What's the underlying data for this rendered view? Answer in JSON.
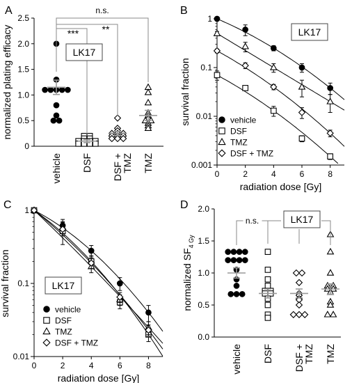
{
  "chart_data": [
    {
      "id": "A",
      "type": "scatter",
      "panel_label": "A",
      "ylabel": "normalized plating efficacy",
      "ylim": [
        0,
        2.5
      ],
      "yticks": [
        "0",
        "0.5",
        "1.0",
        "1.5",
        "2.0",
        "2.5"
      ],
      "box_label": "LK17",
      "significance": [
        {
          "from": "vehicle",
          "to": "TMZ",
          "label": "n.s."
        },
        {
          "from": "vehicle",
          "to": "DSF",
          "label": "***"
        },
        {
          "from": "vehicle",
          "to": "DSF + TMZ",
          "label": "**"
        }
      ],
      "categories": [
        {
          "label": "vehicle",
          "marker": "circle-filled",
          "mean": 1.15,
          "sem": 0.14,
          "values": [
            2.0,
            1.3,
            1.1,
            1.1,
            1.1,
            1.1,
            1.1,
            0.8,
            0.6,
            0.5,
            0.5
          ]
        },
        {
          "label": "DSF",
          "marker": "square-open",
          "mean": 0.1,
          "sem": 0.03,
          "values": [
            0.2,
            0.2,
            0.15,
            0.15,
            0.1,
            0.1,
            0.1,
            0.1,
            0.05,
            0.05,
            0.05,
            0.05
          ]
        },
        {
          "label": "DSF +\nTMZ",
          "marker": "diamond-open",
          "mean": 0.25,
          "sem": 0.04,
          "values": [
            0.55,
            0.35,
            0.3,
            0.25,
            0.25,
            0.25,
            0.2,
            0.2,
            0.2,
            0.15,
            0.15,
            0.15
          ]
        },
        {
          "label": "TMZ",
          "marker": "triangle-open",
          "mean": 0.6,
          "sem": 0.1,
          "values": [
            1.15,
            1.05,
            0.85,
            0.65,
            0.6,
            0.55,
            0.5,
            0.5,
            0.45,
            0.4,
            0.35
          ]
        }
      ]
    },
    {
      "id": "B",
      "type": "line",
      "panel_label": "B",
      "xlabel": "radiation dose [Gy]",
      "ylabel": "survival fraction",
      "xlim": [
        0,
        9
      ],
      "xticks": [
        0,
        2,
        4,
        6,
        8
      ],
      "ylim": [
        0.001,
        1
      ],
      "yscale": "log",
      "yticks": [
        "0.001",
        "0.01",
        "0.1",
        "1"
      ],
      "box_label": "LK17",
      "legend": {
        "position": "bottom-left"
      },
      "series": [
        {
          "name": "vehicle",
          "marker": "circle-filled",
          "x": [
            0,
            2,
            4,
            6,
            8
          ],
          "y": [
            1.0,
            0.6,
            0.25,
            0.1,
            0.038
          ],
          "err": [
            0,
            0.15,
            0.03,
            0.02,
            0.01
          ]
        },
        {
          "name": "DSF",
          "marker": "square-open",
          "x": [
            0,
            2,
            4,
            6,
            8
          ],
          "y": [
            0.07,
            0.038,
            0.013,
            0.0035,
            0.0015
          ],
          "err": [
            0.015,
            0.004,
            0.003,
            0.0005,
            0.0002
          ]
        },
        {
          "name": "TMZ",
          "marker": "triangle-open",
          "x": [
            0,
            2,
            4,
            6,
            8
          ],
          "y": [
            0.5,
            0.27,
            0.1,
            0.04,
            0.02
          ],
          "err": [
            0.05,
            0.06,
            0.02,
            0.015,
            0.008
          ]
        },
        {
          "name": "DSF + TMZ",
          "marker": "diamond-open",
          "x": [
            0,
            2,
            4,
            6,
            8
          ],
          "y": [
            0.22,
            0.11,
            0.04,
            0.012,
            0.0045
          ],
          "err": [
            0.02,
            0.015,
            0.005,
            0.003,
            0.0007
          ]
        }
      ]
    },
    {
      "id": "C",
      "type": "line",
      "panel_label": "C",
      "xlabel": "radiation dose [Gy]",
      "ylabel": "survival fraction",
      "xlim": [
        0,
        9
      ],
      "xticks": [
        0,
        2,
        4,
        6,
        8
      ],
      "ylim": [
        0.01,
        1
      ],
      "yscale": "log",
      "yticks": [
        "0.01",
        "0.1",
        "1"
      ],
      "box_label": "LK17",
      "legend": {
        "position": "bottom-left"
      },
      "series": [
        {
          "name": "vehicle",
          "marker": "circle-filled",
          "x": [
            0,
            2,
            4,
            6,
            8
          ],
          "y": [
            1.0,
            0.62,
            0.28,
            0.1,
            0.04
          ],
          "err": [
            0,
            0.13,
            0.05,
            0.02,
            0.01
          ]
        },
        {
          "name": "DSF",
          "marker": "square-open",
          "x": [
            0,
            2,
            4,
            6,
            8
          ],
          "y": [
            1.0,
            0.52,
            0.2,
            0.055,
            0.02
          ],
          "err": [
            0,
            0.18,
            0.04,
            0.01,
            0.004
          ]
        },
        {
          "name": "TMZ",
          "marker": "triangle-open",
          "x": [
            0,
            2,
            4,
            6,
            8
          ],
          "y": [
            1.0,
            0.58,
            0.17,
            0.06,
            0.025
          ],
          "err": [
            0,
            0.1,
            0.03,
            0.01,
            0.005
          ]
        },
        {
          "name": "DSF + TMZ",
          "marker": "diamond-open",
          "x": [
            0,
            2,
            4,
            6,
            8
          ],
          "y": [
            1.0,
            0.55,
            0.19,
            0.065,
            0.023
          ],
          "err": [
            0,
            0.1,
            0.03,
            0.01,
            0.004
          ]
        }
      ]
    },
    {
      "id": "D",
      "type": "scatter",
      "panel_label": "D",
      "ylabel": "normalized SF",
      "ylabel_sub": "4 Gy",
      "ylim": [
        0,
        2.0
      ],
      "yticks": [
        "0.0",
        "0.5",
        "1.0",
        "1.5",
        "2.0"
      ],
      "box_label": "LK17",
      "significance": [
        {
          "from": "vehicle",
          "to": "TMZ",
          "label": "n.s."
        }
      ],
      "categories": [
        {
          "label": "vehicle",
          "marker": "circle-filled",
          "mean": 1.0,
          "sem": 0.08,
          "values": [
            1.33,
            1.33,
            1.33,
            1.33,
            1.2,
            1.2,
            1.2,
            1.2,
            1.05,
            0.9,
            0.8,
            0.67,
            0.67,
            0.67
          ]
        },
        {
          "label": "DSF",
          "marker": "square-open",
          "mean": 0.68,
          "sem": 0.07,
          "values": [
            1.33,
            1.05,
            0.9,
            0.8,
            0.72,
            0.72,
            0.68,
            0.68,
            0.6,
            0.5,
            0.35,
            0.3
          ]
        },
        {
          "label": "DSF +\nTMZ",
          "marker": "diamond-open",
          "mean": 0.68,
          "sem": 0.07,
          "values": [
            1.0,
            1.0,
            0.85,
            0.68,
            0.65,
            0.6,
            0.58,
            0.5,
            0.35,
            0.35,
            0.35
          ]
        },
        {
          "label": "TMZ",
          "marker": "triangle-open",
          "mean": 0.75,
          "sem": 0.08,
          "values": [
            1.6,
            1.33,
            1.0,
            0.8,
            0.8,
            0.75,
            0.75,
            0.7,
            0.55,
            0.5,
            0.35,
            0.35
          ]
        }
      ]
    }
  ]
}
